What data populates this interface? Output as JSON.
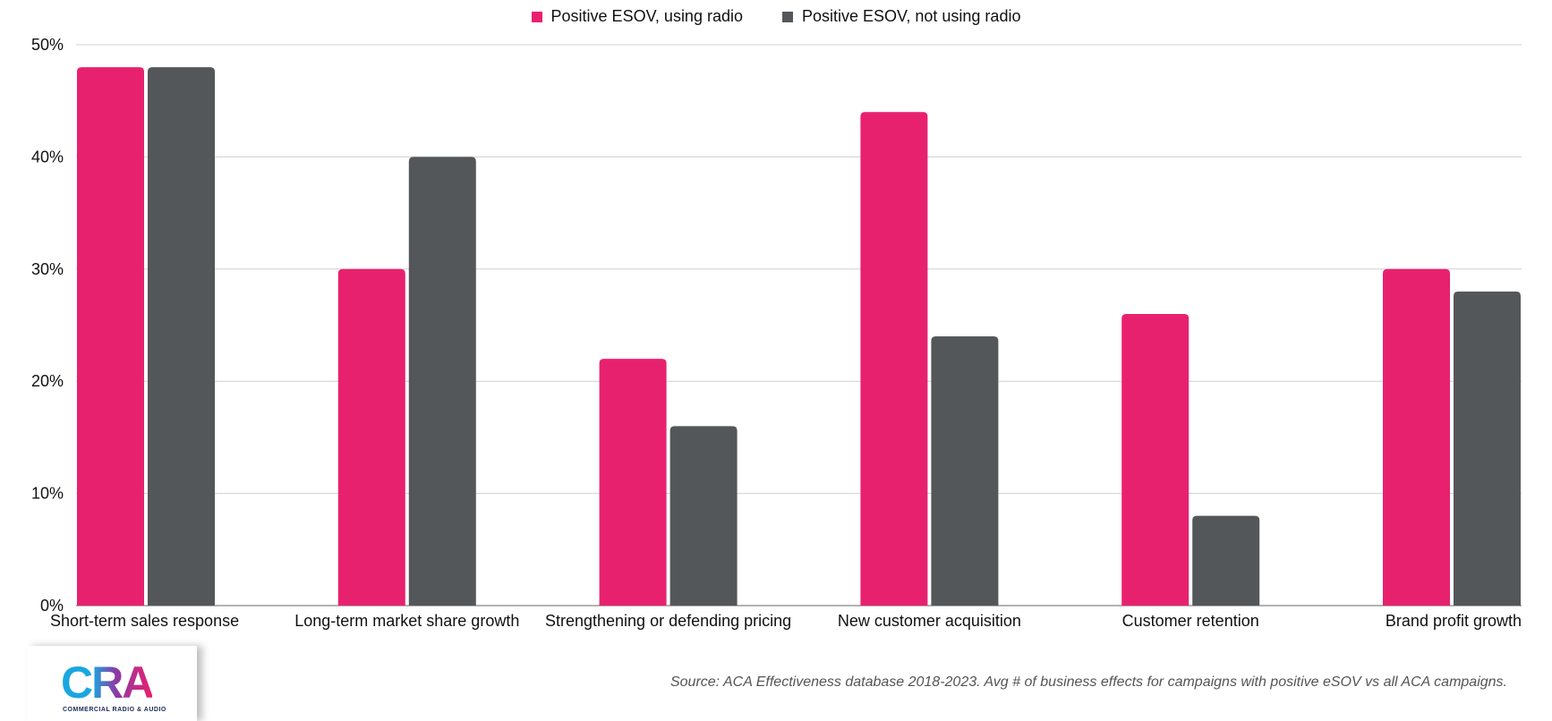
{
  "chart_data": {
    "type": "bar",
    "categories": [
      "Short-term sales response",
      "Long-term market share growth",
      "Strengthening or defending pricing",
      "New customer acquisition",
      "Customer retention",
      "Brand profit growth"
    ],
    "series": [
      {
        "name": "Positive ESOV, using radio",
        "color": "#e8216f",
        "values": [
          48,
          30,
          22,
          44,
          26,
          30
        ]
      },
      {
        "name": "Positive ESOV, not using radio",
        "color": "#54575a",
        "values": [
          48,
          40,
          16,
          24,
          8,
          28
        ]
      }
    ],
    "ylim": [
      0,
      50
    ],
    "yticks": [
      "0%",
      "10%",
      "20%",
      "30%",
      "40%",
      "50%"
    ],
    "grid": true,
    "legend_position": "top-center"
  },
  "source": "Source: ACA Effectiveness database 2018-2023. Avg # of business effects for campaigns with positive eSOV vs all ACA campaigns.",
  "logo": {
    "text": "CRA",
    "subtitle": "COMMERCIAL RADIO & AUDIO"
  }
}
